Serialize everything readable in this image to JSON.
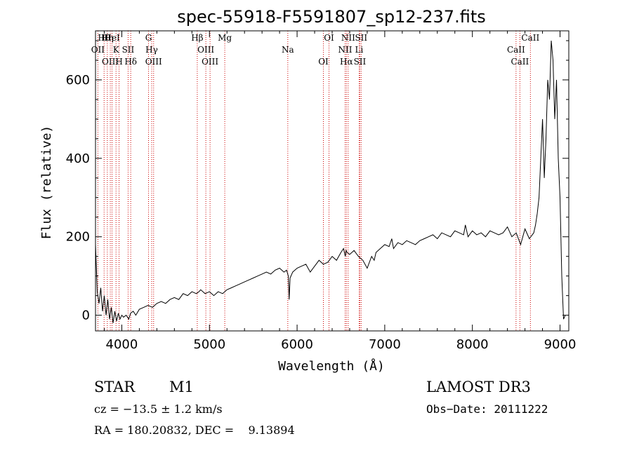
{
  "chart_data": {
    "type": "line",
    "title": "spec-55918-F5591807_sp12-237.fits",
    "xlabel": "Wavelength (Å)",
    "ylabel": "Flux (relative)",
    "xlim": [
      3700,
      9100
    ],
    "ylim": [
      -40,
      725
    ],
    "x_ticks": [
      4000,
      5000,
      6000,
      7000,
      8000,
      9000
    ],
    "y_ticks": [
      0,
      200,
      400,
      600
    ],
    "series": [
      {
        "name": "flux",
        "x": [
          3700,
          3720,
          3740,
          3760,
          3780,
          3800,
          3820,
          3840,
          3860,
          3880,
          3900,
          3920,
          3940,
          3960,
          3980,
          4000,
          4020,
          4050,
          4080,
          4100,
          4130,
          4160,
          4200,
          4250,
          4300,
          4350,
          4400,
          4450,
          4500,
          4550,
          4600,
          4650,
          4700,
          4750,
          4800,
          4850,
          4880,
          4900,
          4950,
          5000,
          5050,
          5100,
          5150,
          5200,
          5250,
          5300,
          5350,
          5400,
          5450,
          5500,
          5550,
          5600,
          5650,
          5700,
          5750,
          5800,
          5850,
          5880,
          5900,
          5910,
          5920,
          5950,
          6000,
          6050,
          6100,
          6150,
          6200,
          6250,
          6300,
          6350,
          6400,
          6450,
          6500,
          6530,
          6550,
          6560,
          6570,
          6600,
          6650,
          6700,
          6750,
          6800,
          6850,
          6880,
          6900,
          6950,
          7000,
          7050,
          7080,
          7100,
          7150,
          7200,
          7250,
          7300,
          7350,
          7400,
          7450,
          7500,
          7550,
          7600,
          7650,
          7700,
          7750,
          7800,
          7850,
          7900,
          7920,
          7950,
          8000,
          8050,
          8100,
          8150,
          8200,
          8250,
          8300,
          8350,
          8400,
          8450,
          8500,
          8550,
          8600,
          8650,
          8700,
          8720,
          8740,
          8760,
          8780,
          8800,
          8820,
          8840,
          8860,
          8880,
          8900,
          8920,
          8940,
          8960,
          8980,
          9000,
          9020,
          9040,
          9060
        ],
        "y": [
          180,
          60,
          30,
          70,
          10,
          50,
          0,
          40,
          -10,
          20,
          -20,
          10,
          -15,
          5,
          -10,
          0,
          -5,
          0,
          -10,
          5,
          10,
          0,
          15,
          20,
          25,
          20,
          30,
          35,
          30,
          40,
          45,
          40,
          55,
          50,
          60,
          55,
          60,
          65,
          55,
          60,
          50,
          60,
          55,
          65,
          70,
          75,
          80,
          85,
          90,
          95,
          100,
          105,
          110,
          105,
          115,
          120,
          110,
          115,
          100,
          40,
          95,
          110,
          120,
          125,
          130,
          110,
          125,
          140,
          130,
          135,
          150,
          140,
          160,
          170,
          150,
          165,
          160,
          155,
          165,
          150,
          140,
          120,
          150,
          140,
          160,
          170,
          180,
          175,
          195,
          170,
          185,
          180,
          190,
          185,
          180,
          190,
          195,
          200,
          205,
          195,
          210,
          205,
          200,
          215,
          210,
          205,
          230,
          200,
          215,
          205,
          210,
          200,
          215,
          210,
          205,
          210,
          225,
          200,
          210,
          180,
          220,
          195,
          210,
          230,
          260,
          300,
          400,
          500,
          350,
          450,
          600,
          550,
          700,
          650,
          500,
          600,
          400,
          300,
          100,
          -10,
          0
        ]
      }
    ],
    "line_markers": [
      {
        "label": "Hθ",
        "wavelength": 3798
      },
      {
        "label": "OII",
        "wavelength": 3727
      },
      {
        "label": "OIII",
        "wavelength": 3869
      },
      {
        "label": "HeI",
        "wavelength": 3889
      },
      {
        "label": "K",
        "wavelength": 3934
      },
      {
        "label": "H",
        "wavelength": 3969
      },
      {
        "label": "Hη",
        "wavelength": 3835
      },
      {
        "label": "SII",
        "wavelength": 4072
      },
      {
        "label": "Hδ",
        "wavelength": 4102
      },
      {
        "label": "G",
        "wavelength": 4305
      },
      {
        "label": "Hγ",
        "wavelength": 4341
      },
      {
        "label": "OIII",
        "wavelength": 4363
      },
      {
        "label": "Hβ",
        "wavelength": 4861
      },
      {
        "label": "OIII",
        "wavelength": 4959
      },
      {
        "label": "OIII",
        "wavelength": 5007
      },
      {
        "label": "Mg",
        "wavelength": 5175
      },
      {
        "label": "Na",
        "wavelength": 5894
      },
      {
        "label": "OI",
        "wavelength": 6300
      },
      {
        "label": "OI",
        "wavelength": 6364
      },
      {
        "label": "NII",
        "wavelength": 6548
      },
      {
        "label": "Hα",
        "wavelength": 6563
      },
      {
        "label": "NII",
        "wavelength": 6583
      },
      {
        "label": "Li",
        "wavelength": 6708
      },
      {
        "label": "SII",
        "wavelength": 6716
      },
      {
        "label": "SII",
        "wavelength": 6731
      },
      {
        "label": "CaII",
        "wavelength": 8498
      },
      {
        "label": "CaII",
        "wavelength": 8542
      },
      {
        "label": "CaII",
        "wavelength": 8662
      }
    ],
    "marker_color": "#cc0000"
  },
  "info": {
    "object_class": "STAR",
    "subclass": "M1",
    "survey": "LAMOST DR3",
    "redshift": "cz = −13.5 ± 1.2 km/s",
    "obs_date": "Obs−Date: 20111222",
    "coords": "RA = 180.20832, DEC =    9.13894"
  }
}
